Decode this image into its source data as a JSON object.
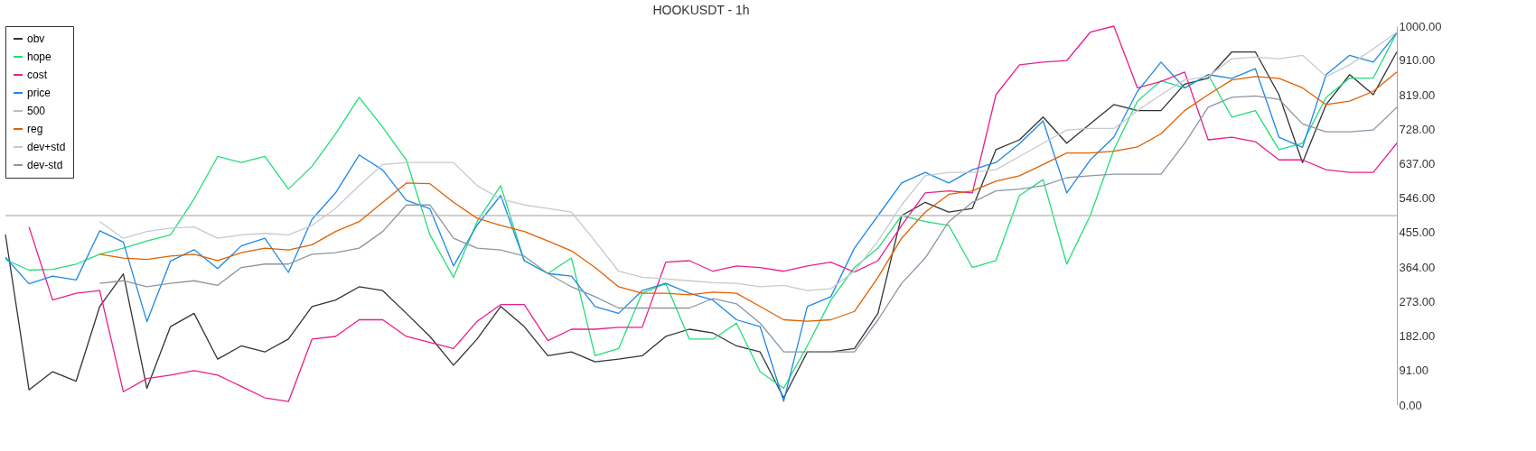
{
  "chart_data": {
    "type": "line",
    "title": "HOOKUSDT - 1h",
    "categories": [
      null,
      null,
      null,
      null,
      null,
      null,
      null,
      null,
      null,
      null,
      null,
      null,
      null,
      null,
      null,
      null,
      null,
      null,
      null,
      null,
      null,
      null,
      null,
      null,
      null,
      null,
      null,
      null,
      null,
      null,
      null,
      null,
      null,
      null,
      null,
      null,
      null,
      null,
      null,
      null,
      null,
      null,
      null,
      null,
      null,
      null,
      null,
      null,
      null,
      null,
      null,
      null,
      null,
      null,
      null,
      null,
      null,
      null,
      null,
      null
    ],
    "series": [
      {
        "name": "obv",
        "color": "#333333",
        "values": [
          450,
          40,
          88,
          63,
          260,
          346,
          44,
          207,
          242,
          121,
          156,
          140,
          174,
          260,
          277,
          312,
          302,
          242,
          181,
          105,
          174,
          260,
          207,
          130,
          140,
          114,
          121,
          130,
          181,
          200,
          190,
          156,
          140,
          19,
          140,
          140,
          149,
          242,
          500,
          535,
          509,
          519,
          674,
          700,
          760,
          691,
          742,
          793,
          777,
          777,
          847,
          863,
          932,
          932,
          819,
          640,
          793,
          872,
          819,
          932
        ]
      },
      {
        "name": "hope",
        "color": "#22dd77",
        "values": [
          384,
          356,
          358,
          372,
          398,
          414,
          433,
          449,
          544,
          656,
          640,
          656,
          570,
          630,
          716,
          812,
          733,
          647,
          449,
          337,
          484,
          579,
          381,
          347,
          388,
          130,
          149,
          295,
          321,
          174,
          174,
          216,
          88,
          44,
          156,
          277,
          363,
          414,
          500,
          484,
          474,
          363,
          381,
          553,
          595,
          372,
          500,
          674,
          802,
          856,
          837,
          872,
          760,
          777,
          674,
          691,
          812,
          863,
          863,
          983
        ]
      },
      {
        "name": "cost",
        "color": "#e91e8c",
        "values": [
          null,
          470,
          277,
          295,
          302,
          35,
          70,
          79,
          91,
          79,
          49,
          19,
          9,
          174,
          181,
          225,
          225,
          181,
          165,
          149,
          221,
          265,
          265,
          170,
          200,
          200,
          205,
          205,
          377,
          381,
          353,
          367,
          363,
          353,
          367,
          377,
          351,
          381,
          474,
          560,
          565,
          560,
          819,
          898,
          905,
          909,
          984,
          1000,
          837,
          854,
          879,
          700,
          707,
          695,
          647,
          647,
          621,
          614,
          614,
          691
        ]
      },
      {
        "name": "price",
        "color": "#1e88e5",
        "values": [
          390,
          320,
          340,
          330,
          460,
          430,
          220,
          380,
          410,
          360,
          420,
          440,
          350,
          490,
          560,
          660,
          620,
          540,
          518,
          367,
          475,
          553,
          381,
          347,
          340,
          260,
          242,
          302,
          321,
          295,
          277,
          225,
          207,
          10,
          260,
          286,
          414,
          500,
          586,
          614,
          586,
          621,
          640,
          690,
          750,
          560,
          647,
          707,
          828,
          905,
          837,
          872,
          862,
          888,
          707,
          680,
          872,
          923,
          905,
          983
        ]
      },
      {
        "name": "500",
        "color": "#bdbdbd",
        "values": [
          500,
          500,
          500,
          500,
          500,
          500,
          500,
          500,
          500,
          500,
          500,
          500,
          500,
          500,
          500,
          500,
          500,
          500,
          500,
          500,
          500,
          500,
          500,
          500,
          500,
          500,
          500,
          500,
          500,
          500,
          500,
          500,
          500,
          500,
          500,
          500,
          500,
          500,
          500,
          500,
          500,
          500,
          500,
          500,
          500,
          500,
          500,
          500,
          500,
          500,
          500,
          500,
          500,
          500,
          500,
          500,
          500,
          500,
          500,
          500
        ]
      },
      {
        "name": "reg",
        "color": "#e06000",
        "values": [
          null,
          null,
          null,
          null,
          398,
          388,
          384,
          393,
          398,
          381,
          402,
          414,
          409,
          423,
          458,
          484,
          535,
          586,
          584,
          535,
          493,
          474,
          458,
          433,
          407,
          363,
          312,
          295,
          295,
          291,
          298,
          295,
          260,
          225,
          221,
          225,
          247,
          337,
          440,
          509,
          556,
          565,
          591,
          605,
          635,
          665,
          665,
          670,
          681,
          716,
          777,
          819,
          858,
          867,
          862,
          837,
          793,
          802,
          828,
          879
        ]
      },
      {
        "name": "dev+std",
        "color": "#c5cad0",
        "values": [
          null,
          null,
          null,
          null,
          484,
          440,
          458,
          467,
          470,
          440,
          449,
          453,
          449,
          474,
          519,
          579,
          635,
          640,
          640,
          640,
          579,
          544,
          528,
          519,
          509,
          433,
          353,
          337,
          333,
          328,
          323,
          321,
          312,
          316,
          302,
          307,
          353,
          433,
          528,
          605,
          614,
          614,
          621,
          656,
          691,
          726,
          730,
          730,
          777,
          819,
          858,
          867,
          914,
          918,
          914,
          923,
          867,
          898,
          940,
          984
        ]
      },
      {
        "name": "dev-std",
        "color": "#8a97a3",
        "values": [
          null,
          null,
          null,
          null,
          321,
          328,
          312,
          321,
          328,
          316,
          363,
          372,
          372,
          398,
          402,
          414,
          458,
          528,
          528,
          440,
          414,
          409,
          393,
          347,
          312,
          286,
          256,
          256,
          256,
          256,
          281,
          267,
          216,
          140,
          140,
          140,
          140,
          225,
          321,
          388,
          484,
          535,
          565,
          570,
          579,
          600,
          605,
          609,
          609,
          609,
          691,
          786,
          812,
          816,
          807,
          742,
          721,
          721,
          726,
          786
        ]
      }
    ],
    "ylim": [
      0,
      1000
    ],
    "yticks": [
      {
        "value": 0,
        "label": "0.00"
      },
      {
        "value": 91,
        "label": "91.00"
      },
      {
        "value": 182,
        "label": "182.00"
      },
      {
        "value": 273,
        "label": "273.00"
      },
      {
        "value": 364,
        "label": "364.00"
      },
      {
        "value": 455,
        "label": "455.00"
      },
      {
        "value": 546,
        "label": "546.00"
      },
      {
        "value": 637,
        "label": "637.00"
      },
      {
        "value": 728,
        "label": "728.00"
      },
      {
        "value": 819,
        "label": "819.00"
      },
      {
        "value": 910,
        "label": "910.00"
      },
      {
        "value": 1000,
        "label": "1000.00"
      }
    ],
    "tick_labels": "y",
    "grid": false,
    "legend": "top left",
    "marker": "none",
    "line_style": "solid"
  }
}
